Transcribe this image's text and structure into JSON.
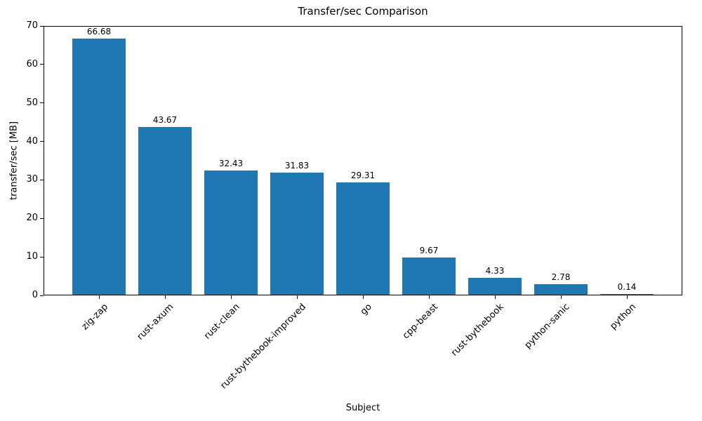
{
  "chart_data": {
    "type": "bar",
    "title": "Transfer/sec Comparison",
    "xlabel": "Subject",
    "ylabel": "transfer/sec [MB]",
    "categories": [
      "zig-zap",
      "rust-axum",
      "rust-clean",
      "rust-bythebook-improved",
      "go",
      "cpp-beast",
      "rust-bythebook",
      "python-sanic",
      "python"
    ],
    "values": [
      66.68,
      43.67,
      32.43,
      31.83,
      29.31,
      9.67,
      4.33,
      2.78,
      0.14
    ],
    "value_labels": [
      "66.68",
      "43.67",
      "32.43",
      "31.83",
      "29.31",
      "9.67",
      "4.33",
      "2.78",
      "0.14"
    ],
    "ylim": [
      0,
      70
    ],
    "yticks": [
      0,
      10,
      20,
      30,
      40,
      50,
      60,
      70
    ],
    "bar_color": "#1f77b4",
    "axis_color": "#000000",
    "grid": false,
    "legend": "none"
  }
}
